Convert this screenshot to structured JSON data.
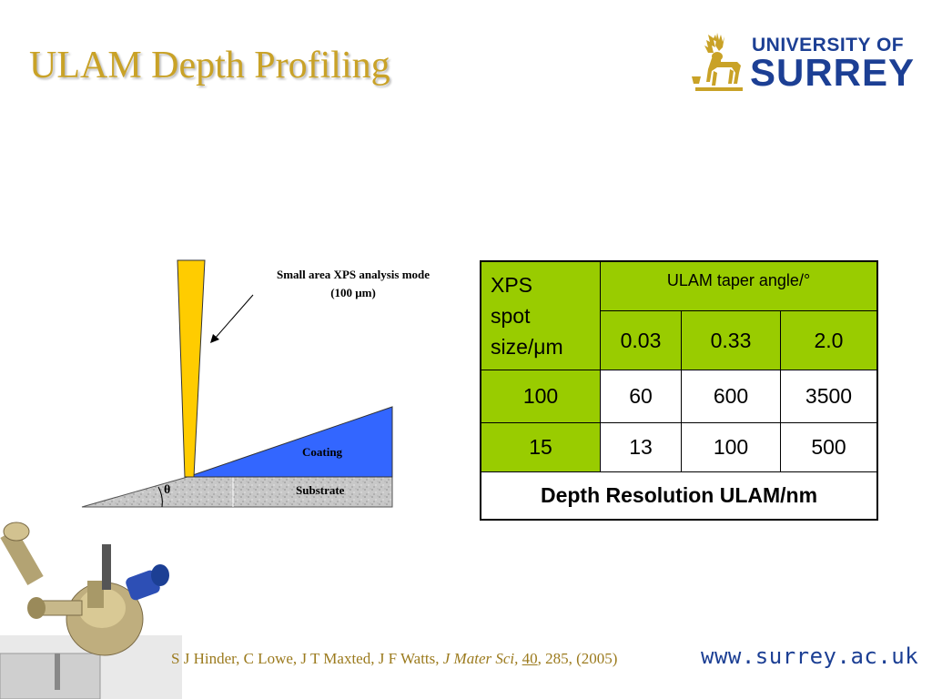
{
  "slide": {
    "title": "ULAM Depth Profiling"
  },
  "logo": {
    "line1": "UNIVERSITY OF",
    "line2": "SURREY"
  },
  "diagram": {
    "callout_line1": "Small area XPS analysis mode",
    "callout_line2": "(100 μm)",
    "coating_label": "Coating",
    "substrate_label": "Substrate",
    "angle_label": "θ",
    "colors": {
      "beam": "#ffcc00",
      "coating": "#3366ff",
      "substrate": "#c8c8c8"
    }
  },
  "table": {
    "header_left": "XPS spot size/μm",
    "header_left_lines": [
      "XPS",
      "spot",
      "size/μm"
    ],
    "header_top": "ULAM taper angle/°",
    "angles": [
      "0.03",
      "0.33",
      "2.0"
    ],
    "rows": [
      {
        "spot": "100",
        "values": [
          "60",
          "600",
          "3500"
        ]
      },
      {
        "spot": "15",
        "values": [
          "13",
          "100",
          "500"
        ]
      }
    ],
    "footer": "Depth Resolution ULAM/nm",
    "colors": {
      "header_fill": "#99cc00"
    }
  },
  "citation": {
    "authors": "S J Hinder, C Lowe, J T Maxted, J F Watts, ",
    "journal": "J Mater Sci,",
    "volume": "40",
    "rest": ", 285, (2005)"
  },
  "footer": {
    "url": "www.surrey.ac.uk"
  }
}
